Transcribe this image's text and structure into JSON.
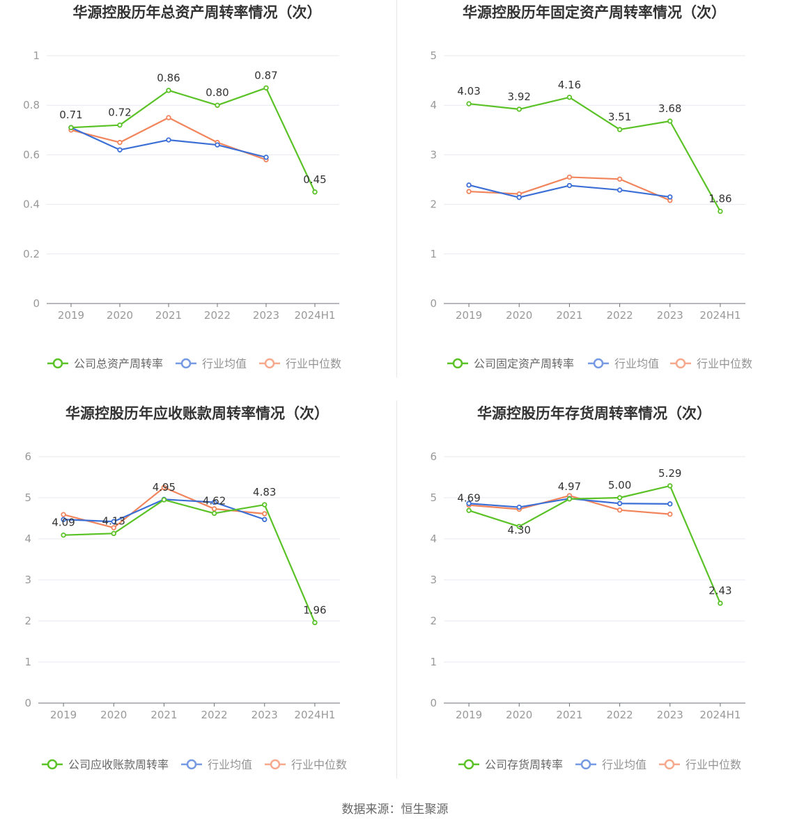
{
  "source_label": "数据来源：恒生聚源",
  "colors": {
    "company": "#5ac226",
    "avg": "#3b6fd6",
    "median": "#f2845c"
  },
  "chart_data": [
    {
      "type": "line",
      "title": "华源控股历年总资产周转率情况（次）",
      "categories": [
        "2019",
        "2020",
        "2021",
        "2022",
        "2023",
        "2024H1"
      ],
      "ylim": [
        0,
        1
      ],
      "yticks": [
        "0",
        "0.2",
        "0.4",
        "0.6",
        "0.8",
        "1"
      ],
      "ytick_values": [
        0,
        0.2,
        0.4,
        0.6,
        0.8,
        1
      ],
      "grid": true,
      "legend_position": "bottom",
      "series": [
        {
          "name": "公司总资产周转率",
          "values": [
            0.71,
            0.72,
            0.86,
            0.8,
            0.87,
            0.45
          ],
          "labels": [
            "0.71",
            "0.72",
            "0.86",
            "0.80",
            "0.87",
            "0.45"
          ]
        },
        {
          "name": "行业均值",
          "values": [
            0.71,
            0.62,
            0.66,
            0.64,
            0.59,
            null
          ]
        },
        {
          "name": "行业中位数",
          "values": [
            0.7,
            0.65,
            0.75,
            0.65,
            0.58,
            null
          ]
        }
      ]
    },
    {
      "type": "line",
      "title": "华源控股历年固定资产周转率情况（次）",
      "categories": [
        "2019",
        "2020",
        "2021",
        "2022",
        "2023",
        "2024H1"
      ],
      "ylim": [
        0,
        5
      ],
      "yticks": [
        "0",
        "1",
        "2",
        "3",
        "4",
        "5"
      ],
      "ytick_values": [
        0,
        1,
        2,
        3,
        4,
        5
      ],
      "grid": true,
      "legend_position": "bottom",
      "series": [
        {
          "name": "公司固定资产周转率",
          "values": [
            4.03,
            3.92,
            4.16,
            3.51,
            3.68,
            1.86
          ],
          "labels": [
            "4.03",
            "3.92",
            "4.16",
            "3.51",
            "3.68",
            "1.86"
          ]
        },
        {
          "name": "行业均值",
          "values": [
            2.39,
            2.14,
            2.38,
            2.29,
            2.15,
            null
          ]
        },
        {
          "name": "行业中位数",
          "values": [
            2.26,
            2.21,
            2.55,
            2.51,
            2.08,
            null
          ]
        }
      ]
    },
    {
      "type": "line",
      "title": "华源控股历年应收账款周转率情况（次）",
      "categories": [
        "2019",
        "2020",
        "2021",
        "2022",
        "2023",
        "2024H1"
      ],
      "ylim": [
        0,
        6
      ],
      "yticks": [
        "0",
        "1",
        "2",
        "3",
        "4",
        "5",
        "6"
      ],
      "ytick_values": [
        0,
        1,
        2,
        3,
        4,
        5,
        6
      ],
      "grid": true,
      "legend_position": "bottom",
      "series": [
        {
          "name": "公司应收账款周转率",
          "values": [
            4.09,
            4.13,
            4.95,
            4.62,
            4.83,
            1.96
          ],
          "labels": [
            "4.09",
            "4.13",
            "4.95",
            "4.62",
            "4.83",
            "1.96"
          ]
        },
        {
          "name": "行业均值",
          "values": [
            4.47,
            4.42,
            4.96,
            4.89,
            4.47,
            null
          ]
        },
        {
          "name": "行业中位数",
          "values": [
            4.59,
            4.27,
            5.25,
            4.73,
            4.61,
            null
          ]
        }
      ]
    },
    {
      "type": "line",
      "title": "华源控股历年存货周转率情况（次）",
      "categories": [
        "2019",
        "2020",
        "2021",
        "2022",
        "2023",
        "2024H1"
      ],
      "ylim": [
        0,
        6
      ],
      "yticks": [
        "0",
        "1",
        "2",
        "3",
        "4",
        "5",
        "6"
      ],
      "ytick_values": [
        0,
        1,
        2,
        3,
        4,
        5,
        6
      ],
      "grid": true,
      "legend_position": "bottom",
      "series": [
        {
          "name": "公司存货周转率",
          "values": [
            4.69,
            4.3,
            4.97,
            5.0,
            5.29,
            2.43
          ],
          "labels": [
            "4.69",
            "4.30",
            "4.97",
            "5.00",
            "5.29",
            "2.43"
          ]
        },
        {
          "name": "行业均值",
          "values": [
            4.86,
            4.77,
            4.98,
            4.86,
            4.85,
            null
          ]
        },
        {
          "name": "行业中位数",
          "values": [
            4.82,
            4.72,
            5.05,
            4.7,
            4.6,
            null
          ]
        }
      ]
    }
  ]
}
